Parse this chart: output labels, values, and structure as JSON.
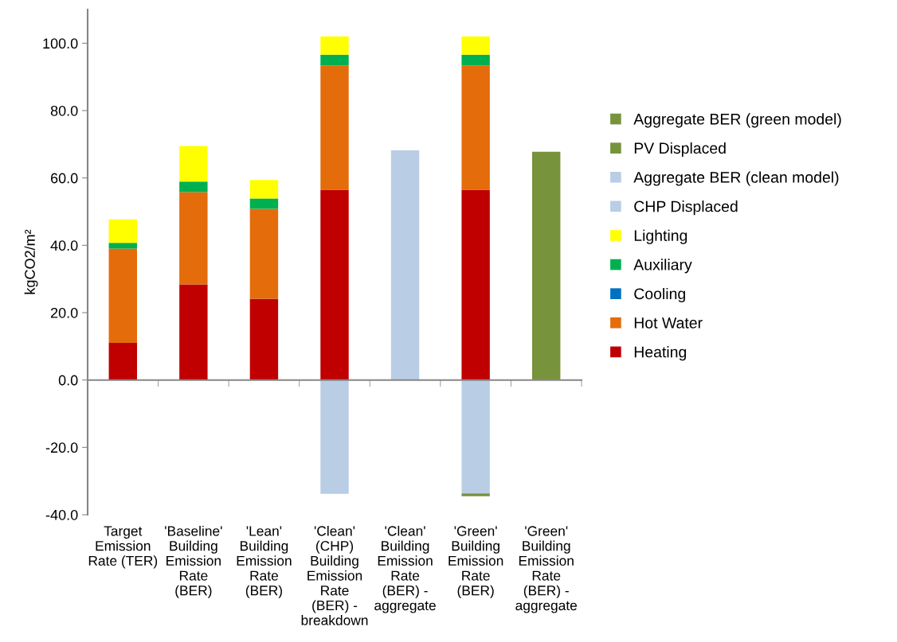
{
  "chart_data": {
    "type": "bar",
    "stacked": true,
    "ylabel": "kgCO2/m²",
    "categories": [
      "Target\nEmission\nRate (TER)",
      "'Baseline'\nBuilding\nEmission\nRate\n(BER)",
      "'Lean'\nBuilding\nEmission\nRate\n(BER)",
      "'Clean'\n(CHP)\nBuilding\nEmission\nRate\n(BER) -\nbreakdown",
      "'Clean'\nBuilding\nEmission\nRate\n(BER) -\naggregate",
      "'Green'\nBuilding\nEmission\nRate\n(BER)",
      "'Green'\nBuilding\nEmission\nRate\n(BER) -\naggregate"
    ],
    "series": [
      {
        "name": "Heating",
        "color": "#c00000",
        "values": [
          11.0,
          28.4,
          24.1,
          56.5,
          null,
          56.5,
          null
        ]
      },
      {
        "name": "Hot Water",
        "color": "#e46c0a",
        "values": [
          28.0,
          27.4,
          26.7,
          36.9,
          null,
          36.9,
          null
        ]
      },
      {
        "name": "Cooling",
        "color": "#0070c0",
        "values": [
          0,
          0,
          0,
          0,
          null,
          0,
          null
        ]
      },
      {
        "name": "Auxiliary",
        "color": "#00b050",
        "values": [
          1.7,
          3.1,
          3.1,
          3.2,
          null,
          3.2,
          null
        ]
      },
      {
        "name": "Lighting",
        "color": "#ffff00",
        "values": [
          7.0,
          10.6,
          5.5,
          5.4,
          null,
          5.4,
          null
        ]
      },
      {
        "name": "CHP Displaced",
        "color": "#b9cde5",
        "values": [
          null,
          null,
          null,
          -33.8,
          null,
          -33.7,
          null
        ]
      },
      {
        "name": "Aggregate BER (clean model)",
        "color": "#b9cde5",
        "values": [
          null,
          null,
          null,
          null,
          68.2,
          null,
          null
        ]
      },
      {
        "name": "PV Displaced",
        "color": "#77933c",
        "values": [
          null,
          null,
          null,
          null,
          null,
          -0.8,
          null
        ]
      },
      {
        "name": "Aggregate BER (green model)",
        "color": "#77933c",
        "values": [
          null,
          null,
          null,
          null,
          null,
          null,
          67.8
        ]
      }
    ],
    "ylim": [
      -40,
      110
    ],
    "yticks": [
      {
        "value": -40,
        "label": "-40.0"
      },
      {
        "value": -20,
        "label": "-20.0"
      },
      {
        "value": 0,
        "label": "0.0"
      },
      {
        "value": 20,
        "label": "20.0"
      },
      {
        "value": 40,
        "label": "40.0"
      },
      {
        "value": 60,
        "label": "60.0"
      },
      {
        "value": 80,
        "label": "80.0"
      },
      {
        "value": 100,
        "label": "100.0"
      }
    ],
    "legend": "right"
  }
}
